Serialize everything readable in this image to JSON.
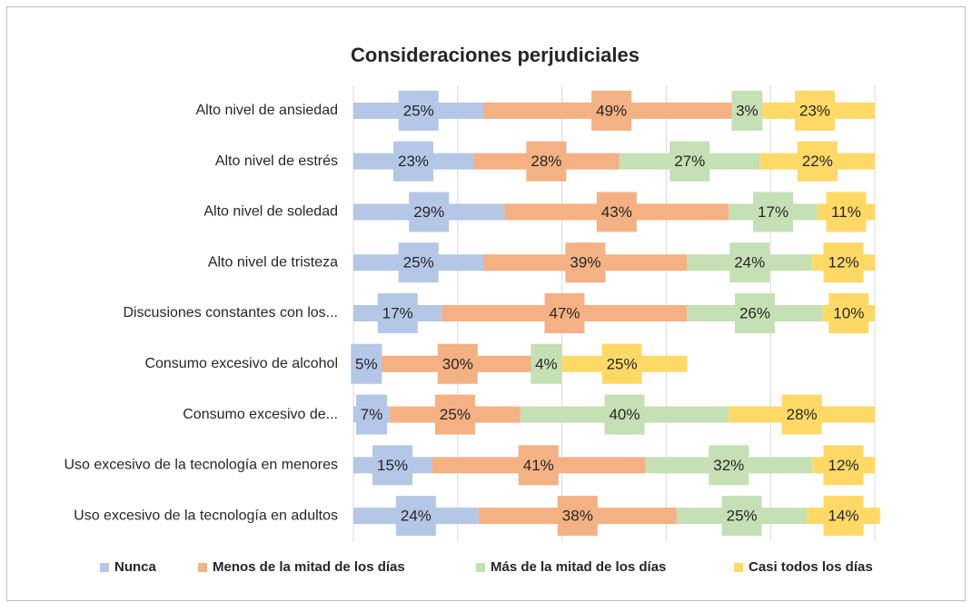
{
  "chart_data": {
    "type": "stacked-barh",
    "title": "Consideraciones perjudiciales",
    "categories": [
      "Alto nivel de ansiedad",
      "Alto nivel de estrés",
      "Alto nivel de soledad",
      "Alto nivel de tristeza",
      "Discusiones constantes con los...",
      "Consumo excesivo de alcohol",
      "Consumo excesivo de...",
      "Uso excesivo de la tecnología en menores",
      "Uso excesivo de la tecnología en adultos"
    ],
    "series": [
      {
        "name": "Nunca",
        "color": "#b4c7e7",
        "values": [
          25,
          23,
          29,
          25,
          17,
          5,
          7,
          15,
          24
        ],
        "value_labels": [
          "25%",
          "23%",
          "29%",
          "25%",
          "17%",
          "5%",
          "7%",
          "15%",
          "24%"
        ]
      },
      {
        "name": "Menos de la mitad de los días",
        "color": "#f4b183",
        "values": [
          49,
          28,
          43,
          39,
          47,
          30,
          25,
          41,
          38
        ],
        "value_labels": [
          "49%",
          "28%",
          "43%",
          "39%",
          "47%",
          "30%",
          "25%",
          "41%",
          "38%"
        ]
      },
      {
        "name": "Más de la mitad de los días",
        "color": "#c5e0b4",
        "values": [
          3,
          27,
          17,
          24,
          26,
          4,
          40,
          32,
          25
        ],
        "value_labels": [
          "3%",
          "27%",
          "17%",
          "24%",
          "26%",
          "4%",
          "40%",
          "32%",
          "25%"
        ]
      },
      {
        "name": "Casi todos los días",
        "color": "#ffd966",
        "values": [
          23,
          22,
          11,
          12,
          10,
          25,
          28,
          12,
          14
        ],
        "value_labels": [
          "23%",
          "22%",
          "11%",
          "12%",
          "10%",
          "25%",
          "28%",
          "12%",
          "14%"
        ]
      }
    ],
    "xlim": [
      0,
      100
    ],
    "xticks": [
      0,
      20,
      40,
      60,
      80,
      100
    ],
    "grid": true,
    "legend": "bottom"
  }
}
